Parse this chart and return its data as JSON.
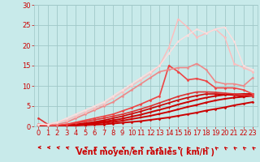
{
  "bg_color": "#c8eaea",
  "grid_color": "#a0c8c8",
  "xlabel": "Vent moyen/en rafales ( km/h )",
  "xlabel_color": "#cc0000",
  "xlabel_fontsize": 7,
  "tick_color": "#cc0000",
  "tick_fontsize": 6,
  "xlim": [
    -0.5,
    23.5
  ],
  "ylim": [
    0,
    30
  ],
  "yticks": [
    0,
    5,
    10,
    15,
    20,
    25,
    30
  ],
  "xticks": [
    0,
    1,
    2,
    3,
    4,
    5,
    6,
    7,
    8,
    9,
    10,
    11,
    12,
    13,
    14,
    15,
    16,
    17,
    18,
    19,
    20,
    21,
    22,
    23
  ],
  "series": [
    {
      "x": [
        0,
        1,
        2,
        3,
        4,
        5,
        6,
        7,
        8,
        9,
        10,
        11,
        12,
        13,
        14,
        15,
        16,
        17,
        18,
        19,
        20,
        21,
        22,
        23
      ],
      "y": [
        0.3,
        0.1,
        0.1,
        0.1,
        0.2,
        0.3,
        0.4,
        0.5,
        0.7,
        0.9,
        1.1,
        1.3,
        1.6,
        1.9,
        2.2,
        2.6,
        3.0,
        3.4,
        3.9,
        4.3,
        4.7,
        5.2,
        5.6,
        6.0
      ],
      "color": "#cc0000",
      "lw": 1.4,
      "marker": "D",
      "ms": 1.5
    },
    {
      "x": [
        0,
        1,
        2,
        3,
        4,
        5,
        6,
        7,
        8,
        9,
        10,
        11,
        12,
        13,
        14,
        15,
        16,
        17,
        18,
        19,
        20,
        21,
        22,
        23
      ],
      "y": [
        0.3,
        0.1,
        0.1,
        0.2,
        0.3,
        0.5,
        0.7,
        0.9,
        1.1,
        1.4,
        1.8,
        2.2,
        2.6,
        3.1,
        3.6,
        4.2,
        4.8,
        5.3,
        5.9,
        6.4,
        6.8,
        7.1,
        7.3,
        7.6
      ],
      "color": "#cc0000",
      "lw": 1.4,
      "marker": "s",
      "ms": 1.5
    },
    {
      "x": [
        0,
        1,
        2,
        3,
        4,
        5,
        6,
        7,
        8,
        9,
        10,
        11,
        12,
        13,
        14,
        15,
        16,
        17,
        18,
        19,
        20,
        21,
        22,
        23
      ],
      "y": [
        0.2,
        0.1,
        0.1,
        0.2,
        0.4,
        0.6,
        0.9,
        1.2,
        1.5,
        1.9,
        2.4,
        2.9,
        3.5,
        4.1,
        4.7,
        5.4,
        6.0,
        6.6,
        7.1,
        7.5,
        7.8,
        7.9,
        8.0,
        8.0
      ],
      "color": "#cc0000",
      "lw": 1.4,
      "marker": "v",
      "ms": 1.5
    },
    {
      "x": [
        0,
        1,
        2,
        3,
        4,
        5,
        6,
        7,
        8,
        9,
        10,
        11,
        12,
        13,
        14,
        15,
        16,
        17,
        18,
        19,
        20,
        21,
        22,
        23
      ],
      "y": [
        0.5,
        0.2,
        0.1,
        0.3,
        0.5,
        0.8,
        1.1,
        1.5,
        2.0,
        2.5,
        3.1,
        3.7,
        4.4,
        5.1,
        5.8,
        6.5,
        7.1,
        7.6,
        8.0,
        8.0,
        7.9,
        7.7,
        7.5,
        7.5
      ],
      "color": "#cc0000",
      "lw": 1.2,
      "marker": "^",
      "ms": 1.5
    },
    {
      "x": [
        0,
        1,
        2,
        3,
        4,
        5,
        6,
        7,
        8,
        9,
        10,
        11,
        12,
        13,
        14,
        15,
        16,
        17,
        18,
        19,
        20,
        21,
        22,
        23
      ],
      "y": [
        2.0,
        0.5,
        0.3,
        0.5,
        0.8,
        1.2,
        1.6,
        2.0,
        2.5,
        3.0,
        3.6,
        4.3,
        5.0,
        5.8,
        6.6,
        7.4,
        8.0,
        8.5,
        8.5,
        8.4,
        8.2,
        8.0,
        7.8,
        7.6
      ],
      "color": "#dd3333",
      "lw": 1.2,
      "marker": "o",
      "ms": 1.5
    },
    {
      "x": [
        0,
        1,
        2,
        3,
        4,
        5,
        6,
        7,
        8,
        9,
        10,
        11,
        12,
        13,
        14,
        15,
        16,
        17,
        18,
        19,
        20,
        21,
        22,
        23
      ],
      "y": [
        0.5,
        0.3,
        0.3,
        0.5,
        1.0,
        1.5,
        2.0,
        2.5,
        3.0,
        3.8,
        4.6,
        5.5,
        6.5,
        7.5,
        15.0,
        13.5,
        11.5,
        11.8,
        11.2,
        9.5,
        9.5,
        9.5,
        9.0,
        8.0
      ],
      "color": "#ee4444",
      "lw": 1.2,
      "marker": "D",
      "ms": 1.5
    },
    {
      "x": [
        0,
        1,
        2,
        3,
        4,
        5,
        6,
        7,
        8,
        9,
        10,
        11,
        12,
        13,
        14,
        15,
        16,
        17,
        18,
        19,
        20,
        21,
        22,
        23
      ],
      "y": [
        0.5,
        0.3,
        0.5,
        1.0,
        2.0,
        3.0,
        4.0,
        5.0,
        6.0,
        7.5,
        9.0,
        10.5,
        12.0,
        13.5,
        14.0,
        14.5,
        14.5,
        15.5,
        14.0,
        11.0,
        10.5,
        10.5,
        10.0,
        12.0
      ],
      "color": "#ee8888",
      "lw": 1.2,
      "marker": "o",
      "ms": 1.5
    },
    {
      "x": [
        0,
        1,
        2,
        3,
        4,
        5,
        6,
        7,
        8,
        9,
        10,
        11,
        12,
        13,
        14,
        15,
        16,
        17,
        18,
        19,
        20,
        21,
        22,
        23
      ],
      "y": [
        0.5,
        0.5,
        1.0,
        1.5,
        2.5,
        3.5,
        4.5,
        5.5,
        7.0,
        8.5,
        10.0,
        11.5,
        13.0,
        15.0,
        19.5,
        26.5,
        24.5,
        22.0,
        23.0,
        24.0,
        22.0,
        15.5,
        14.5,
        13.5
      ],
      "color": "#ffbbbb",
      "lw": 1.0,
      "marker": "D",
      "ms": 1.5
    },
    {
      "x": [
        0,
        1,
        2,
        3,
        4,
        5,
        6,
        7,
        8,
        9,
        10,
        11,
        12,
        13,
        14,
        15,
        16,
        17,
        18,
        19,
        20,
        21,
        22,
        23
      ],
      "y": [
        0.5,
        0.5,
        1.0,
        2.0,
        3.0,
        4.0,
        5.0,
        6.0,
        7.5,
        9.0,
        10.5,
        12.0,
        13.5,
        15.0,
        18.0,
        21.0,
        22.5,
        24.0,
        23.0,
        24.0,
        24.5,
        21.0,
        15.0,
        14.0
      ],
      "color": "#ffdddd",
      "lw": 1.0,
      "marker": "o",
      "ms": 1.5
    }
  ],
  "arrow_angles": [
    180,
    175,
    170,
    165,
    160,
    160,
    155,
    155,
    155,
    155,
    150,
    150,
    150,
    145,
    145,
    145,
    140,
    135,
    135,
    140,
    140,
    140,
    140,
    140
  ],
  "wind_arrow_color": "#cc0000"
}
